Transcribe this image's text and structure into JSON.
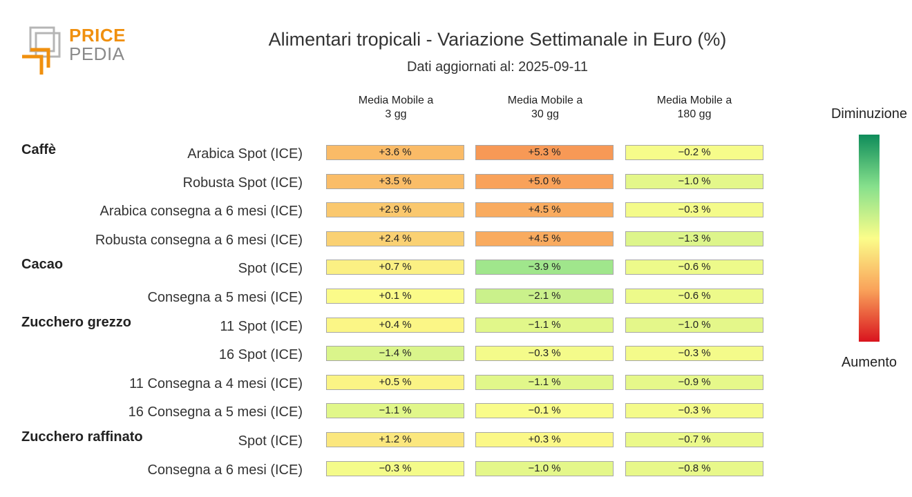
{
  "logo": {
    "line1": "PRICE",
    "line2": "PEDIA"
  },
  "chart_data": {
    "type": "heatmap",
    "title": "Alimentari tropicali - Variazione Settimanale in Euro (%)",
    "subtitle": "Dati aggiornati al: 2025-09-11",
    "columns": [
      "Media Mobile a\n3 gg",
      "Media Mobile a\n30 gg",
      "Media Mobile a\n180 gg"
    ],
    "groups": [
      {
        "name": "Caffè",
        "rows": [
          {
            "label": "Arabica Spot (ICE)",
            "values": [
              3.6,
              5.3,
              -0.2
            ]
          },
          {
            "label": "Robusta Spot (ICE)",
            "values": [
              3.5,
              5.0,
              -1.0
            ]
          },
          {
            "label": "Arabica consegna a 6 mesi (ICE)",
            "values": [
              2.9,
              4.5,
              -0.3
            ]
          },
          {
            "label": "Robusta consegna a 6 mesi (ICE)",
            "values": [
              2.4,
              4.5,
              -1.3
            ]
          }
        ]
      },
      {
        "name": "Cacao",
        "rows": [
          {
            "label": "Spot (ICE)",
            "values": [
              0.7,
              -3.9,
              -0.6
            ]
          },
          {
            "label": "Consegna a 5 mesi (ICE)",
            "values": [
              0.1,
              -2.1,
              -0.6
            ]
          }
        ]
      },
      {
        "name": "Zucchero grezzo",
        "rows": [
          {
            "label": "11 Spot (ICE)",
            "values": [
              0.4,
              -1.1,
              -1.0
            ]
          },
          {
            "label": "16 Spot (ICE)",
            "values": [
              -1.4,
              -0.3,
              -0.3
            ]
          },
          {
            "label": "11 Consegna a 4 mesi (ICE)",
            "values": [
              0.5,
              -1.1,
              -0.9
            ]
          },
          {
            "label": "16 Consegna a 5 mesi (ICE)",
            "values": [
              -1.1,
              -0.1,
              -0.3
            ]
          }
        ]
      },
      {
        "name": "Zucchero raffinato",
        "rows": [
          {
            "label": "Spot (ICE)",
            "values": [
              1.2,
              0.3,
              -0.7
            ]
          },
          {
            "label": "Consegna a 6 mesi (ICE)",
            "values": [
              -0.3,
              -1.0,
              -0.8
            ]
          }
        ]
      }
    ],
    "value_suffix": " %",
    "legend": {
      "top": "Diminuzione",
      "bottom": "Aumento",
      "placement": "right"
    },
    "color_scale": {
      "min": -10,
      "max": 10,
      "colors": [
        "#0e8c5a",
        "#86e08c",
        "#fbfd8a",
        "#f9a25a",
        "#d9141e"
      ]
    }
  }
}
